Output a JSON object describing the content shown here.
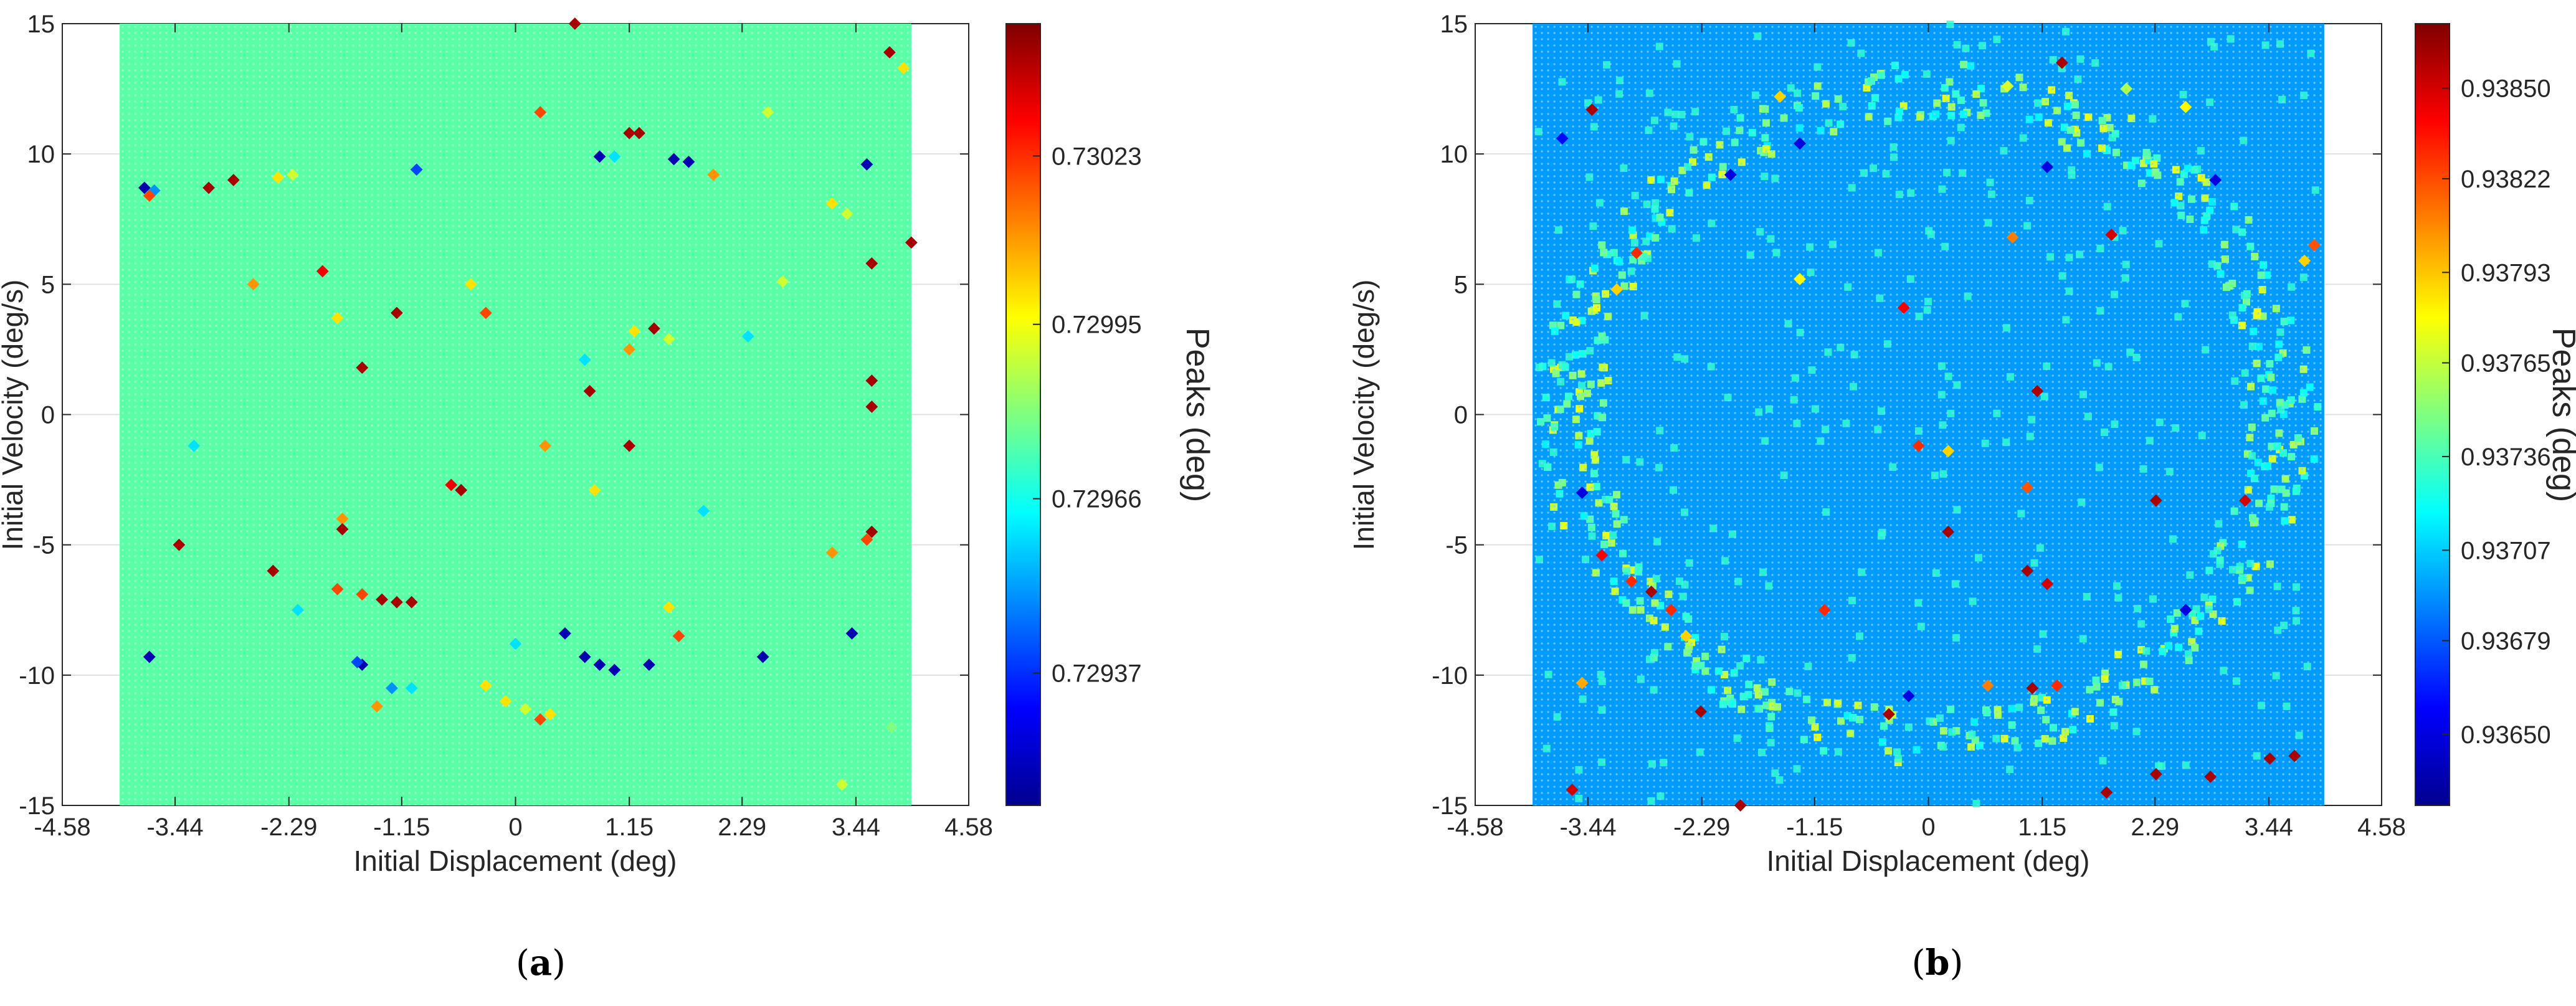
{
  "figure": {
    "caption_a": "a",
    "caption_b": "b"
  },
  "chart_data": [
    {
      "type": "scatter",
      "panel": "a",
      "xlabel": "Initial Displacement (deg)",
      "ylabel": "Initial Velocity (deg/s)",
      "colorbar_label": "Peaks (deg)",
      "xlim": [
        -4.58,
        4.58
      ],
      "ylim": [
        -15,
        15
      ],
      "grid_x_range": [
        -4.0,
        4.0
      ],
      "xticks": [
        -4.58,
        -3.44,
        -2.29,
        -1.15,
        0,
        1.15,
        2.29,
        3.44,
        4.58
      ],
      "xtick_labels": [
        "-4.58",
        "-3.44",
        "-2.29",
        "-1.15",
        "0",
        "1.15",
        "2.29",
        "3.44",
        "4.58"
      ],
      "yticks": [
        15,
        10,
        5,
        0,
        -5,
        -10,
        -15
      ],
      "ytick_labels": [
        "15",
        "10",
        "5",
        "0",
        "-5",
        "-10",
        "-15"
      ],
      "colorbar_range": [
        0.72915,
        0.73045
      ],
      "colorbar_ticks": [
        0.73023,
        0.72995,
        0.72966,
        0.72937
      ],
      "colorbar_tick_labels": [
        "0.73023",
        "0.72995",
        "0.72966",
        "0.72937"
      ],
      "base_value": 0.72975,
      "points": [
        [
          0.6,
          15.0,
          0.7304
        ],
        [
          3.78,
          13.9,
          0.7304
        ],
        [
          3.92,
          13.3,
          0.73
        ],
        [
          2.55,
          11.6,
          0.7299
        ],
        [
          0.25,
          11.6,
          0.7302
        ],
        [
          1.15,
          10.8,
          0.7304
        ],
        [
          1.25,
          10.8,
          0.7304
        ],
        [
          -3.75,
          8.7,
          0.7292
        ],
        [
          -3.65,
          8.6,
          0.7295
        ],
        [
          -3.7,
          8.4,
          0.7302
        ],
        [
          -3.1,
          8.7,
          0.7304
        ],
        [
          -2.85,
          9.0,
          0.7304
        ],
        [
          -2.4,
          9.1,
          0.73
        ],
        [
          -2.25,
          9.2,
          0.7299
        ],
        [
          -1.0,
          9.4,
          0.7294
        ],
        [
          0.85,
          9.9,
          0.7292
        ],
        [
          1.0,
          9.9,
          0.7296
        ],
        [
          1.6,
          9.8,
          0.7292
        ],
        [
          1.75,
          9.7,
          0.7292
        ],
        [
          2.0,
          9.2,
          0.7301
        ],
        [
          3.55,
          9.6,
          0.7292
        ],
        [
          3.2,
          8.1,
          0.73
        ],
        [
          3.35,
          7.7,
          0.7299
        ],
        [
          3.6,
          5.8,
          0.7304
        ],
        [
          4.0,
          6.6,
          0.7304
        ],
        [
          -2.65,
          5.0,
          0.7301
        ],
        [
          -1.95,
          5.5,
          0.7303
        ],
        [
          -1.2,
          3.9,
          0.7304
        ],
        [
          -1.8,
          3.7,
          0.73
        ],
        [
          -0.3,
          3.9,
          0.7302
        ],
        [
          1.4,
          3.3,
          0.7304
        ],
        [
          1.2,
          3.2,
          0.73
        ],
        [
          1.55,
          2.9,
          0.7299
        ],
        [
          1.15,
          2.5,
          0.7301
        ],
        [
          -1.55,
          1.8,
          0.7304
        ],
        [
          0.75,
          0.9,
          0.7304
        ],
        [
          3.6,
          1.3,
          0.7304
        ],
        [
          3.6,
          0.3,
          0.7304
        ],
        [
          1.15,
          -1.2,
          0.7304
        ],
        [
          0.3,
          -1.2,
          0.7301
        ],
        [
          -0.65,
          -2.7,
          0.7303
        ],
        [
          -0.55,
          -2.9,
          0.7304
        ],
        [
          0.8,
          -2.9,
          0.73
        ],
        [
          -1.75,
          -4.0,
          0.7301
        ],
        [
          -1.75,
          -4.4,
          0.7304
        ],
        [
          3.6,
          -4.5,
          0.7304
        ],
        [
          3.55,
          -4.8,
          0.7302
        ],
        [
          3.2,
          -5.3,
          0.7301
        ],
        [
          -3.4,
          -5.0,
          0.7304
        ],
        [
          -2.45,
          -6.0,
          0.7304
        ],
        [
          -1.8,
          -6.7,
          0.7302
        ],
        [
          -1.55,
          -6.9,
          0.7302
        ],
        [
          -1.35,
          -7.1,
          0.7304
        ],
        [
          -1.2,
          -7.2,
          0.7304
        ],
        [
          -1.05,
          -7.2,
          0.7304
        ],
        [
          1.55,
          -7.4,
          0.73
        ],
        [
          0.5,
          -8.4,
          0.7292
        ],
        [
          1.65,
          -8.5,
          0.7302
        ],
        [
          3.4,
          -8.4,
          0.7292
        ],
        [
          -3.7,
          -9.3,
          0.7292
        ],
        [
          -1.55,
          -9.6,
          0.7292
        ],
        [
          -1.6,
          -9.5,
          0.7294
        ],
        [
          0.7,
          -9.3,
          0.7292
        ],
        [
          0.85,
          -9.6,
          0.7292
        ],
        [
          1.0,
          -9.8,
          0.7292
        ],
        [
          1.35,
          -9.6,
          0.7292
        ],
        [
          2.5,
          -9.3,
          0.7292
        ],
        [
          -0.3,
          -10.4,
          0.73
        ],
        [
          -0.1,
          -11.0,
          0.73
        ],
        [
          0.1,
          -11.3,
          0.7299
        ],
        [
          0.25,
          -11.7,
          0.7302
        ],
        [
          0.35,
          -11.5,
          0.73
        ],
        [
          -1.4,
          -11.2,
          0.7301
        ],
        [
          -1.25,
          -10.5,
          0.7295
        ],
        [
          -1.05,
          -10.5,
          0.7296
        ],
        [
          3.8,
          -12.0,
          0.7298
        ],
        [
          3.3,
          -14.2,
          0.7299
        ],
        [
          -2.2,
          -7.5,
          0.7296
        ],
        [
          0.0,
          -8.8,
          0.7296
        ],
        [
          1.9,
          -3.7,
          0.7296
        ],
        [
          -0.45,
          5.0,
          0.73
        ],
        [
          2.7,
          5.1,
          0.7299
        ],
        [
          -3.25,
          -1.2,
          0.7296
        ],
        [
          2.35,
          3.0,
          0.7296
        ],
        [
          0.7,
          2.1,
          0.7296
        ]
      ]
    },
    {
      "type": "scatter",
      "panel": "b",
      "xlabel": "Initial Displacement (deg)",
      "ylabel": "Initial Velocity (deg/s)",
      "colorbar_label": "Peaks (deg)",
      "xlim": [
        -4.58,
        4.58
      ],
      "ylim": [
        -15,
        15
      ],
      "grid_x_range": [
        -4.0,
        4.0
      ],
      "xticks": [
        -4.58,
        -3.44,
        -2.29,
        -1.15,
        0,
        1.15,
        2.29,
        3.44,
        4.58
      ],
      "xtick_labels": [
        "-4.58",
        "-3.44",
        "-2.29",
        "-1.15",
        "0",
        "1.15",
        "2.29",
        "3.44",
        "4.58"
      ],
      "yticks": [
        15,
        10,
        5,
        0,
        -5,
        -10,
        -15
      ],
      "ytick_labels": [
        "15",
        "10",
        "5",
        "0",
        "-5",
        "-10",
        "-15"
      ],
      "colorbar_range": [
        0.93628,
        0.9387
      ],
      "colorbar_ticks": [
        0.9385,
        0.93822,
        0.93793,
        0.93765,
        0.93736,
        0.93707,
        0.93679,
        0.9365
      ],
      "colorbar_tick_labels": [
        "0.93850",
        "0.93822",
        "0.93793",
        "0.93765",
        "0.93736",
        "0.93707",
        "0.93679",
        "0.93650"
      ],
      "base_value": 0.93695,
      "ring_pattern": "elliptical ring of elevated values around origin with radii approx 3.6 deg and 12.5 deg/s",
      "points": [
        [
          -3.4,
          11.7,
          0.9386
        ],
        [
          -1.5,
          12.2,
          0.9379
        ],
        [
          0.8,
          12.6,
          0.9377
        ],
        [
          1.35,
          13.5,
          0.9386
        ],
        [
          2.0,
          12.5,
          0.9376
        ],
        [
          2.6,
          11.8,
          0.9378
        ],
        [
          -3.7,
          10.6,
          0.9366
        ],
        [
          -2.0,
          9.2,
          0.9365
        ],
        [
          1.2,
          9.5,
          0.9365
        ],
        [
          2.9,
          9.0,
          0.9365
        ],
        [
          -2.95,
          6.2,
          0.9383
        ],
        [
          -1.3,
          5.2,
          0.9378
        ],
        [
          0.85,
          6.8,
          0.9381
        ],
        [
          1.85,
          6.9,
          0.9385
        ],
        [
          -3.15,
          4.8,
          0.9379
        ],
        [
          -0.25,
          4.1,
          0.9384
        ],
        [
          3.9,
          6.5,
          0.9382
        ],
        [
          3.8,
          5.9,
          0.9379
        ],
        [
          1.1,
          0.9,
          0.9386
        ],
        [
          -0.1,
          -1.2,
          0.9383
        ],
        [
          0.2,
          -1.4,
          0.9379
        ],
        [
          1.0,
          -2.8,
          0.9382
        ],
        [
          2.3,
          -3.3,
          0.9386
        ],
        [
          3.2,
          -3.3,
          0.9385
        ],
        [
          0.2,
          -4.5,
          0.9386
        ],
        [
          -3.3,
          -5.4,
          0.9384
        ],
        [
          -3.0,
          -6.4,
          0.9383
        ],
        [
          -2.8,
          -6.8,
          0.9386
        ],
        [
          -2.6,
          -7.5,
          0.9383
        ],
        [
          -2.45,
          -8.5,
          0.9379
        ],
        [
          1.0,
          -6.0,
          0.9386
        ],
        [
          1.2,
          -6.5,
          0.9385
        ],
        [
          -1.05,
          -7.5,
          0.9383
        ],
        [
          -3.5,
          -10.3,
          0.938
        ],
        [
          -2.3,
          -11.4,
          0.9386
        ],
        [
          -0.4,
          -11.5,
          0.9386
        ],
        [
          0.6,
          -10.4,
          0.9381
        ],
        [
          1.05,
          -10.5,
          0.9386
        ],
        [
          1.3,
          -10.4,
          0.9383
        ],
        [
          2.3,
          -13.8,
          0.9386
        ],
        [
          1.8,
          -14.5,
          0.9386
        ],
        [
          2.85,
          -13.9,
          0.9386
        ],
        [
          3.45,
          -13.2,
          0.9386
        ],
        [
          3.7,
          -13.1,
          0.9386
        ],
        [
          -1.9,
          -15.0,
          0.9386
        ],
        [
          -3.6,
          -14.4,
          0.9385
        ],
        [
          -0.2,
          -10.8,
          0.9365
        ],
        [
          2.6,
          -7.5,
          0.9365
        ],
        [
          -3.5,
          -3.0,
          0.9365
        ],
        [
          -1.3,
          10.4,
          0.9365
        ]
      ]
    }
  ]
}
